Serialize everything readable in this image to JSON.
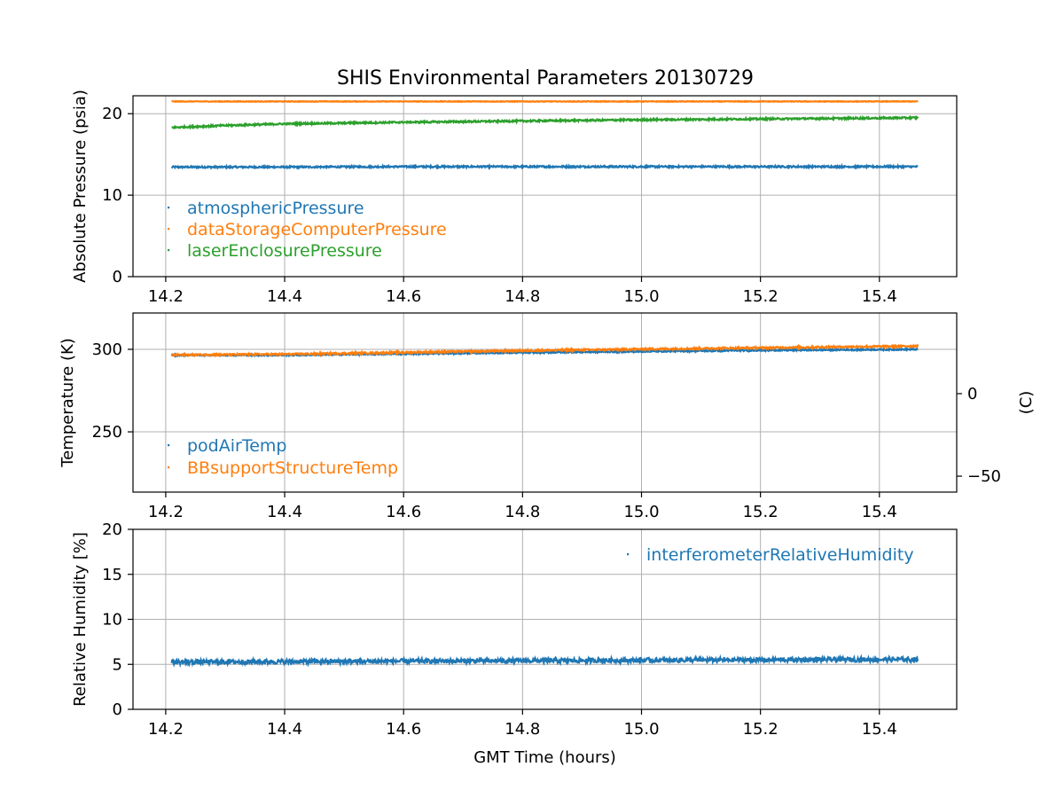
{
  "chart_data": [
    {
      "type": "line",
      "title": "SHIS Environmental Parameters 20130729",
      "xlabel": "",
      "ylabel": "Absolute Pressure (psia)",
      "xlim": [
        14.145,
        15.53
      ],
      "ylim": [
        0,
        22.2
      ],
      "xticks": [
        14.2,
        14.4,
        14.6,
        14.8,
        15.0,
        15.2,
        15.4
      ],
      "xtick_labels": [
        "14.2",
        "14.4",
        "14.6",
        "14.8",
        "15.0",
        "15.2",
        "15.4"
      ],
      "yticks": [
        0,
        10,
        20
      ],
      "ytick_labels": [
        "0",
        "10",
        "20"
      ],
      "grid": true,
      "legend": "lower-left",
      "series": [
        {
          "name": "atmosphericPressure",
          "color": "#1f77b4",
          "x": [
            14.21,
            14.4,
            14.6,
            14.8,
            15.0,
            15.2,
            15.465
          ],
          "y": [
            13.45,
            13.45,
            13.5,
            13.5,
            13.5,
            13.5,
            13.5
          ],
          "noise": 0.1
        },
        {
          "name": "dataStorageComputerPressure",
          "color": "#ff7f0e",
          "x": [
            14.21,
            14.4,
            14.6,
            14.8,
            15.0,
            15.2,
            15.465
          ],
          "y": [
            21.5,
            21.5,
            21.5,
            21.5,
            21.5,
            21.5,
            21.5
          ],
          "noise": 0.04
        },
        {
          "name": "laserEnclosurePressure",
          "color": "#2ca02c",
          "x": [
            14.21,
            14.3,
            14.4,
            14.6,
            14.8,
            15.0,
            15.2,
            15.465
          ],
          "y": [
            18.3,
            18.55,
            18.75,
            18.95,
            19.1,
            19.25,
            19.35,
            19.5
          ],
          "noise": 0.1
        }
      ]
    },
    {
      "type": "line",
      "title": "",
      "xlabel": "",
      "ylabel": "Temperature (K)",
      "y2label": "(C)",
      "xlim": [
        14.145,
        15.53
      ],
      "ylim": [
        213.5,
        322
      ],
      "y2lim": [
        -59.65,
        48.85
      ],
      "xticks": [
        14.2,
        14.4,
        14.6,
        14.8,
        15.0,
        15.2,
        15.4
      ],
      "xtick_labels": [
        "14.2",
        "14.4",
        "14.6",
        "14.8",
        "15.0",
        "15.2",
        "15.4"
      ],
      "yticks": [
        250,
        300
      ],
      "ytick_labels": [
        "250",
        "300"
      ],
      "y2ticks": [
        -50,
        0
      ],
      "y2tick_labels": [
        "−50",
        "0"
      ],
      "grid": true,
      "legend": "lower-left",
      "series": [
        {
          "name": "podAirTemp",
          "color": "#1f77b4",
          "x": [
            14.21,
            14.4,
            14.6,
            14.8,
            15.0,
            15.2,
            15.465
          ],
          "y": [
            296.5,
            296.5,
            297.3,
            298.0,
            298.7,
            299.4,
            300.0
          ],
          "noise": 0.4
        },
        {
          "name": "BBsupportStructureTemp",
          "color": "#ff7f0e",
          "x": [
            14.21,
            14.4,
            14.6,
            14.8,
            15.0,
            15.2,
            15.465
          ],
          "y": [
            296.6,
            297.0,
            298.1,
            299.2,
            300.1,
            300.9,
            302.0
          ],
          "noise": 0.5
        }
      ]
    },
    {
      "type": "line",
      "title": "",
      "xlabel": "GMT Time (hours)",
      "ylabel": "Relative Humidity [%]",
      "xlim": [
        14.145,
        15.53
      ],
      "ylim": [
        0,
        20
      ],
      "xticks": [
        14.2,
        14.4,
        14.6,
        14.8,
        15.0,
        15.2,
        15.4
      ],
      "xtick_labels": [
        "14.2",
        "14.4",
        "14.6",
        "14.8",
        "15.0",
        "15.2",
        "15.4"
      ],
      "yticks": [
        0,
        5,
        10,
        15,
        20
      ],
      "ytick_labels": [
        "0",
        "5",
        "10",
        "15",
        "20"
      ],
      "grid": true,
      "legend": "upper-right",
      "series": [
        {
          "name": "interferometerRelativeHumidity",
          "color": "#1f77b4",
          "x": [
            14.21,
            14.4,
            14.6,
            14.8,
            15.0,
            15.2,
            15.465
          ],
          "y": [
            5.25,
            5.3,
            5.35,
            5.4,
            5.45,
            5.5,
            5.55
          ],
          "noise": 0.25
        }
      ]
    }
  ]
}
